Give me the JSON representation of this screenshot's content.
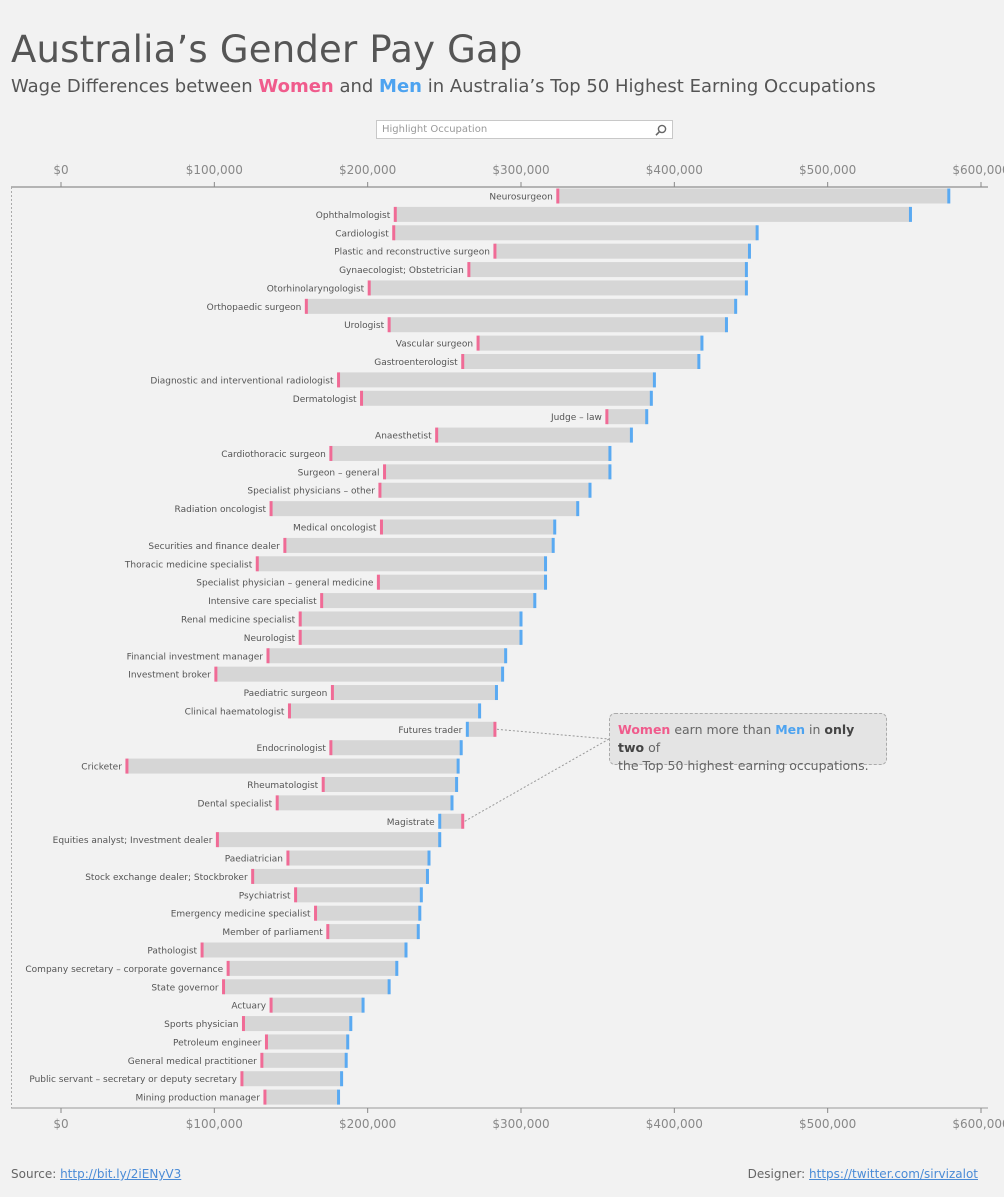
{
  "header": {
    "title": "Australia’s Gender Pay Gap",
    "subtitle_pre": "Wage Differences between ",
    "subtitle_women": "Women",
    "subtitle_and": " and ",
    "subtitle_men": "Men",
    "subtitle_post": " in Australia’s Top 50 Highest Earning Occupations"
  },
  "search": {
    "placeholder": "Highlight Occupation",
    "icon": "search-icon"
  },
  "annotation": {
    "women": "Women",
    "text1": " earn more than ",
    "men": "Men",
    "text2": " in ",
    "emph": "only two",
    "text3": " of",
    "line2": "the Top 50 highest earning occupations."
  },
  "footer": {
    "source_label": "Source: ",
    "source_link": "http://bit.ly/2iENyV3",
    "designer_label": "Designer: ",
    "designer_link": "https://twitter.com/sirvizalot"
  },
  "colors": {
    "women": "#f06b96",
    "men": "#5aaaf2",
    "bar": "#d6d6d6",
    "axis_text": "#888"
  },
  "chart_data": {
    "type": "dumbbell",
    "xlim": [
      0,
      600000
    ],
    "x_ticks": [
      0,
      100000,
      200000,
      300000,
      400000,
      500000,
      600000
    ],
    "x_tick_labels": [
      "$0",
      "$100,000",
      "$200,000",
      "$300,000",
      "$400,000",
      "$500,000",
      "$600,000"
    ],
    "series_names": [
      "Women",
      "Men"
    ],
    "rows": [
      {
        "label": "Neurosurgeon",
        "women": 324000,
        "men": 579000
      },
      {
        "label": "Ophthalmologist",
        "women": 218000,
        "men": 554000
      },
      {
        "label": "Cardiologist",
        "women": 217000,
        "men": 454000
      },
      {
        "label": "Plastic and reconstructive surgeon",
        "women": 283000,
        "men": 449000
      },
      {
        "label": "Gynaecologist; Obstetrician",
        "women": 266000,
        "men": 447000
      },
      {
        "label": "Otorhinolaryngologist",
        "women": 201000,
        "men": 447000
      },
      {
        "label": "Orthopaedic surgeon",
        "women": 160000,
        "men": 440000
      },
      {
        "label": "Urologist",
        "women": 214000,
        "men": 434000
      },
      {
        "label": "Vascular surgeon",
        "women": 272000,
        "men": 418000
      },
      {
        "label": "Gastroenterologist",
        "women": 262000,
        "men": 416000
      },
      {
        "label": "Diagnostic and interventional radiologist",
        "women": 181000,
        "men": 387000
      },
      {
        "label": "Dermatologist",
        "women": 196000,
        "men": 385000
      },
      {
        "label": "Judge – law",
        "women": 356000,
        "men": 382000
      },
      {
        "label": "Anaesthetist",
        "women": 245000,
        "men": 372000
      },
      {
        "label": "Cardiothoracic surgeon",
        "women": 176000,
        "men": 358000
      },
      {
        "label": "Surgeon – general",
        "women": 211000,
        "men": 358000
      },
      {
        "label": "Specialist physicians – other",
        "women": 208000,
        "men": 345000
      },
      {
        "label": "Radiation oncologist",
        "women": 137000,
        "men": 337000
      },
      {
        "label": "Medical oncologist",
        "women": 209000,
        "men": 322000
      },
      {
        "label": "Securities and finance dealer",
        "women": 146000,
        "men": 321000
      },
      {
        "label": "Thoracic medicine specialist",
        "women": 128000,
        "men": 316000
      },
      {
        "label": "Specialist physician – general medicine",
        "women": 207000,
        "men": 316000
      },
      {
        "label": "Intensive care specialist",
        "women": 170000,
        "men": 309000
      },
      {
        "label": "Renal medicine specialist",
        "women": 156000,
        "men": 300000
      },
      {
        "label": "Neurologist",
        "women": 156000,
        "men": 300000
      },
      {
        "label": "Financial investment manager",
        "women": 135000,
        "men": 290000
      },
      {
        "label": "Investment broker",
        "women": 101000,
        "men": 288000
      },
      {
        "label": "Paediatric surgeon",
        "women": 177000,
        "men": 284000
      },
      {
        "label": "Clinical haematologist",
        "women": 149000,
        "men": 273000
      },
      {
        "label": "Futures trader",
        "women": 283000,
        "men": 265000
      },
      {
        "label": "Endocrinologist",
        "women": 176000,
        "men": 261000
      },
      {
        "label": "Cricketer",
        "women": 43000,
        "men": 259000
      },
      {
        "label": "Rheumatologist",
        "women": 171000,
        "men": 258000
      },
      {
        "label": "Dental specialist",
        "women": 141000,
        "men": 255000
      },
      {
        "label": "Magistrate",
        "women": 262000,
        "men": 247000
      },
      {
        "label": "Equities analyst; Investment dealer",
        "women": 102000,
        "men": 247000
      },
      {
        "label": "Paediatrician",
        "women": 148000,
        "men": 240000
      },
      {
        "label": "Stock exchange dealer; Stockbroker",
        "women": 125000,
        "men": 239000
      },
      {
        "label": "Psychiatrist",
        "women": 153000,
        "men": 235000
      },
      {
        "label": "Emergency medicine specialist",
        "women": 166000,
        "men": 234000
      },
      {
        "label": "Member of parliament",
        "women": 174000,
        "men": 233000
      },
      {
        "label": "Pathologist",
        "women": 92000,
        "men": 225000
      },
      {
        "label": "Company secretary – corporate governance",
        "women": 109000,
        "men": 219000
      },
      {
        "label": "State governor",
        "women": 106000,
        "men": 214000
      },
      {
        "label": "Actuary",
        "women": 137000,
        "men": 197000
      },
      {
        "label": "Sports physician",
        "women": 119000,
        "men": 189000
      },
      {
        "label": "Petroleum engineer",
        "women": 134000,
        "men": 187000
      },
      {
        "label": "General medical practitioner",
        "women": 131000,
        "men": 186000
      },
      {
        "label": "Public servant – secretary or deputy secretary",
        "women": 118000,
        "men": 183000
      },
      {
        "label": "Mining production manager",
        "women": 133000,
        "men": 181000
      }
    ]
  }
}
